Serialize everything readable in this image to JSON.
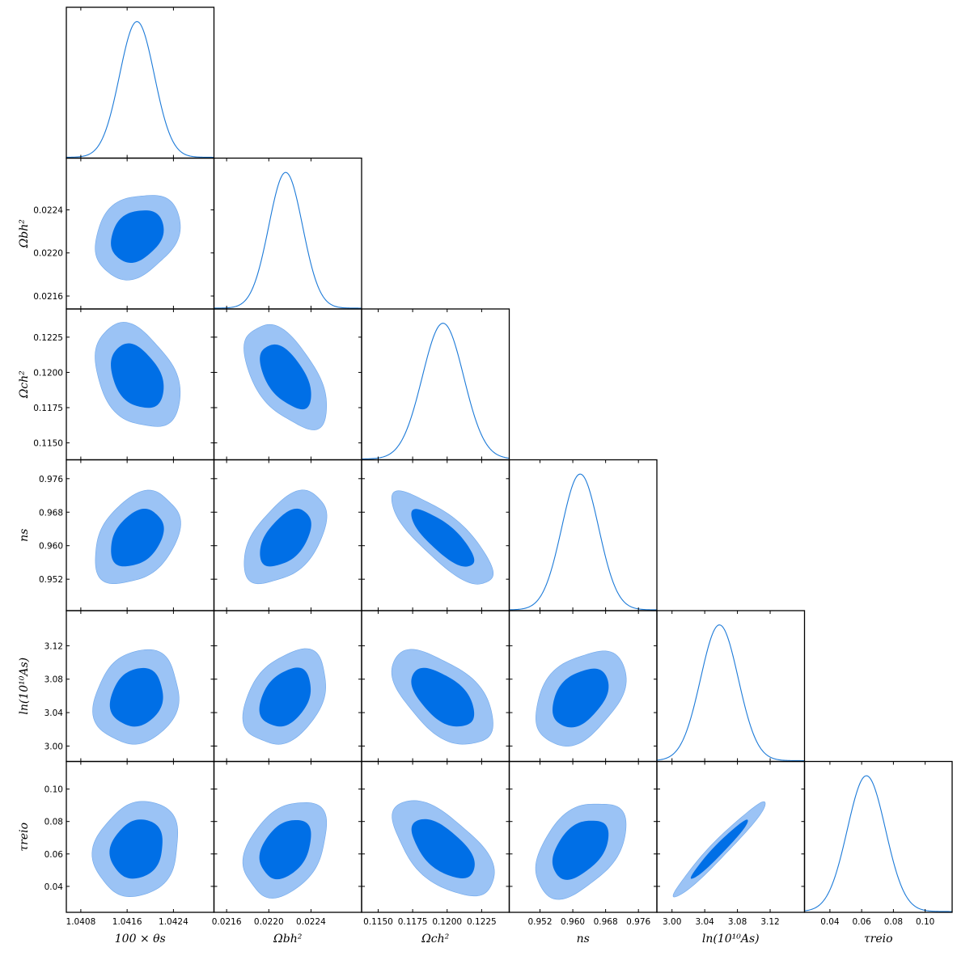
{
  "chart_data": {
    "type": "triangle-plot",
    "colors": {
      "outer_contour": "#9bc3f5",
      "outer_edge": "#6fa7ea",
      "inner_contour": "#006fe6",
      "line": "#1c7ad8"
    },
    "params": [
      {
        "name": "theta_s",
        "label": "100 × θs",
        "range": [
          1.04055,
          1.0431
        ],
        "ticks": [
          1.0408,
          1.0416,
          1.0424
        ],
        "tick_labels": [
          "1.0408",
          "1.0416",
          "1.0424"
        ],
        "mean": 1.04177,
        "sigma": 0.0003
      },
      {
        "name": "omega_b",
        "label": "Ωbh²",
        "range": [
          0.02148,
          0.02288
        ],
        "ticks": [
          0.0216,
          0.022,
          0.0224
        ],
        "tick_labels": [
          "0.0216",
          "0.0220",
          "0.0224"
        ],
        "mean": 0.02216,
        "sigma": 0.00016
      },
      {
        "name": "omega_c",
        "label": "Ωch²",
        "range": [
          0.1138,
          0.1245
        ],
        "ticks": [
          0.115,
          0.1175,
          0.12,
          0.1225
        ],
        "tick_labels": [
          "0.1150",
          "0.1175",
          "0.1200",
          "0.1225"
        ],
        "mean": 0.1197,
        "sigma": 0.0015
      },
      {
        "name": "n_s",
        "label": "ns",
        "range": [
          0.9445,
          0.9805
        ],
        "ticks": [
          0.952,
          0.96,
          0.968,
          0.976
        ],
        "tick_labels": [
          "0.952",
          "0.960",
          "0.968",
          "0.976"
        ],
        "mean": 0.9618,
        "sigma": 0.0045
      },
      {
        "name": "ln10As",
        "label": "ln(10¹⁰As)",
        "range": [
          2.9815,
          3.162
        ],
        "ticks": [
          3.0,
          3.04,
          3.08,
          3.12
        ],
        "tick_labels": [
          "3.00",
          "3.04",
          "3.08",
          "3.12"
        ],
        "mean": 3.058,
        "sigma": 0.023
      },
      {
        "name": "tau_reio",
        "label": "τreio",
        "range": [
          0.024,
          0.117
        ],
        "ticks": [
          0.04,
          0.06,
          0.08,
          0.1
        ],
        "tick_labels": [
          "0.04",
          "0.06",
          "0.08",
          "0.10"
        ],
        "mean": 0.063,
        "sigma": 0.012
      }
    ],
    "correlations": [
      [
        1,
        0.25,
        -0.35,
        0.35,
        0.15,
        0.15
      ],
      [
        0.25,
        1,
        -0.55,
        0.5,
        0.35,
        0.35
      ],
      [
        -0.35,
        -0.55,
        1,
        -0.8,
        -0.55,
        -0.6
      ],
      [
        0.35,
        0.5,
        -0.8,
        1,
        0.4,
        0.45
      ],
      [
        0.15,
        0.35,
        -0.55,
        0.4,
        1,
        0.97
      ],
      [
        0.15,
        0.35,
        -0.6,
        0.45,
        0.97,
        1
      ]
    ],
    "contour_levels": [
      "68%",
      "95%"
    ]
  }
}
